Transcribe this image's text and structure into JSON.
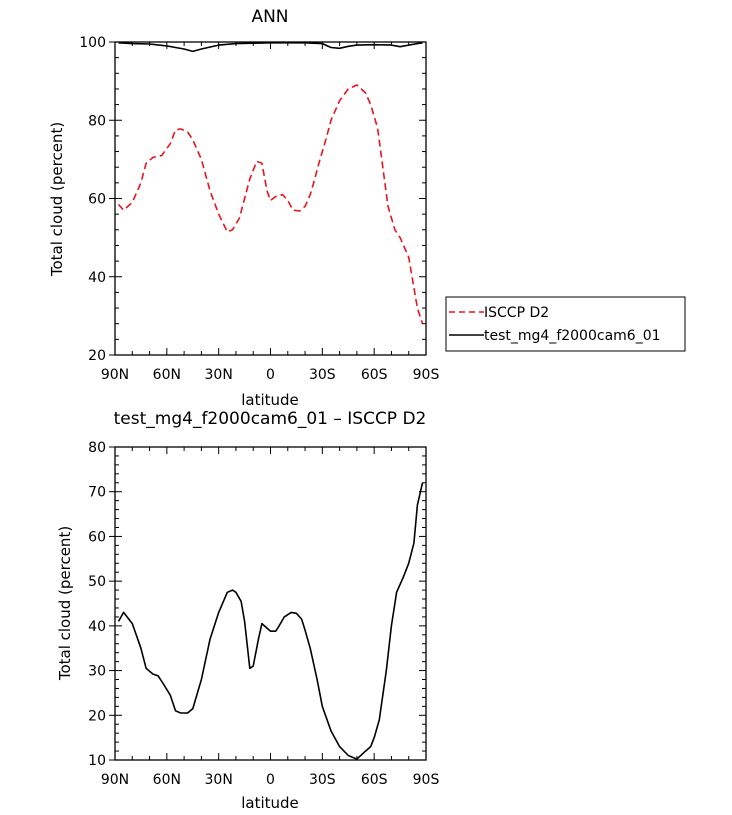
{
  "chart_data": [
    {
      "type": "line",
      "title": "ANN",
      "xlabel": "latitude",
      "ylabel": "Total cloud (percent)",
      "xlim": [
        90,
        -90
      ],
      "ylim": [
        20,
        100
      ],
      "x_ticks": [
        90,
        60,
        30,
        0,
        -30,
        -60,
        -90
      ],
      "x_tick_labels": [
        "90N",
        "60N",
        "30N",
        "0",
        "30S",
        "60S",
        "90S"
      ],
      "y_ticks": [
        20,
        40,
        60,
        80,
        100
      ],
      "y_tick_labels": [
        "20",
        "40",
        "60",
        "80",
        "100"
      ],
      "legend": "right-bottom",
      "series": [
        {
          "name": "ISCCP D2",
          "color": "#e8141b",
          "dash": "dashed",
          "x": [
            88,
            85,
            80,
            75,
            72,
            68,
            63,
            58,
            55,
            52,
            48,
            45,
            40,
            35,
            30,
            25,
            22,
            18,
            15,
            12,
            8,
            5,
            2,
            0,
            -3,
            -7,
            -10,
            -13,
            -17,
            -20,
            -23,
            -25,
            -28,
            -32,
            -35,
            -40,
            -45,
            -50,
            -55,
            -58,
            -62,
            -65,
            -68,
            -72,
            -75,
            -80,
            -85,
            -88
          ],
          "y": [
            58.5,
            57,
            59,
            64,
            69,
            70.5,
            71,
            74,
            77.5,
            77.8,
            77,
            75,
            70,
            62,
            56,
            51.5,
            52,
            55,
            60,
            65,
            69.5,
            69,
            62,
            59.5,
            60.5,
            61,
            59.5,
            57,
            56.8,
            58,
            61,
            64,
            69,
            75,
            80,
            85,
            88,
            89,
            87,
            84,
            78,
            68,
            58,
            52,
            50,
            45,
            32,
            28
          ]
        },
        {
          "name": "test_mg4_f2000cam6_01",
          "color": "#000000",
          "dash": "solid",
          "x": [
            88,
            80,
            70,
            60,
            55,
            50,
            45,
            40,
            30,
            20,
            10,
            0,
            -10,
            -20,
            -30,
            -35,
            -40,
            -45,
            -50,
            -60,
            -70,
            -75,
            -80,
            -85,
            -88
          ],
          "y": [
            99.8,
            99.6,
            99.5,
            99,
            98.6,
            98.2,
            97.6,
            98.2,
            99.2,
            99.6,
            99.7,
            99.8,
            99.8,
            99.8,
            99.6,
            98.6,
            98.4,
            98.9,
            99.2,
            99.3,
            99.2,
            98.8,
            99.2,
            99.6,
            99.8
          ]
        }
      ]
    },
    {
      "type": "line",
      "title": "test_mg4_f2000cam6_01 – ISCCP D2",
      "xlabel": "latitude",
      "ylabel": "Total cloud (percent)",
      "xlim": [
        90,
        -90
      ],
      "ylim": [
        10,
        80
      ],
      "x_ticks": [
        90,
        60,
        30,
        0,
        -30,
        -60,
        -90
      ],
      "x_tick_labels": [
        "90N",
        "60N",
        "30N",
        "0",
        "30S",
        "60S",
        "90S"
      ],
      "y_ticks": [
        10,
        20,
        30,
        40,
        50,
        60,
        70,
        80
      ],
      "y_tick_labels": [
        "10",
        "20",
        "30",
        "40",
        "50",
        "60",
        "70",
        "80"
      ],
      "series": [
        {
          "color": "#000000",
          "dash": "solid",
          "x": [
            88,
            85,
            80,
            75,
            72,
            68,
            65,
            62,
            58,
            55,
            52,
            48,
            45,
            40,
            35,
            30,
            25,
            22,
            20,
            17,
            15,
            12,
            10,
            7,
            5,
            2,
            0,
            -3,
            -5,
            -8,
            -12,
            -15,
            -18,
            -20,
            -23,
            -27,
            -30,
            -35,
            -40,
            -45,
            -50,
            -55,
            -58,
            -60,
            -63,
            -67,
            -70,
            -73,
            -77,
            -80,
            -83,
            -85,
            -88
          ],
          "y": [
            41,
            43,
            40.5,
            35,
            30.5,
            29.2,
            28.8,
            27,
            24.5,
            21,
            20.5,
            20.5,
            21.5,
            28,
            37,
            43,
            47.5,
            48,
            47.5,
            45.5,
            41,
            30.5,
            31,
            37,
            40.5,
            39.5,
            38.8,
            38.8,
            40,
            42,
            43,
            42.8,
            41.5,
            39,
            35,
            28,
            22,
            16.5,
            13,
            11,
            10.2,
            12,
            13,
            15,
            19,
            30,
            40,
            47.5,
            51,
            54,
            58.5,
            67,
            72
          ]
        }
      ]
    }
  ]
}
